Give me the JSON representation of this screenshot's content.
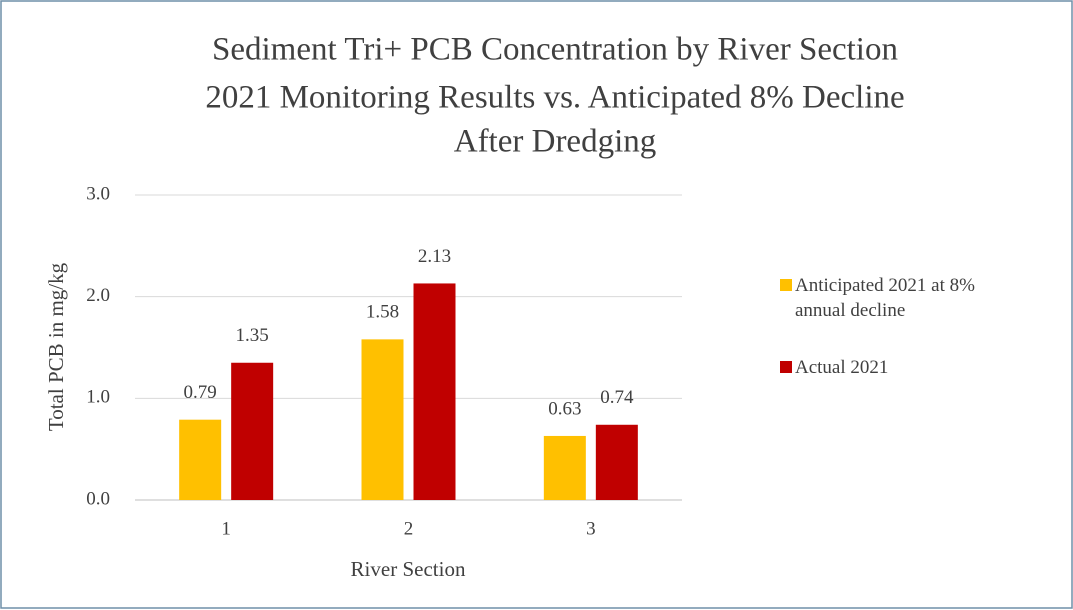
{
  "chart_data": {
    "type": "bar",
    "title": [
      "Sediment Tri+ PCB Concentration by River Section",
      "2021 Monitoring Results vs. Anticipated 8% Decline",
      "After Dredging"
    ],
    "x_label": "River Section",
    "y_label": "Total PCB in mg/kg",
    "categories": [
      "1",
      "2",
      "3"
    ],
    "series": [
      {
        "name": "Anticipated 2021 at 8% annual decline",
        "color": "#FFC000",
        "values": [
          0.79,
          1.58,
          0.63
        ]
      },
      {
        "name": "Actual 2021",
        "color": "#C00000",
        "values": [
          1.35,
          2.13,
          0.74
        ]
      }
    ],
    "ylim": [
      0,
      3
    ],
    "yticks": [
      {
        "value": 0,
        "label": "0.0"
      },
      {
        "value": 1,
        "label": "1.0"
      },
      {
        "value": 2,
        "label": "2.0"
      },
      {
        "value": 3,
        "label": "3.0"
      }
    ],
    "grid": true,
    "legend": "right"
  }
}
